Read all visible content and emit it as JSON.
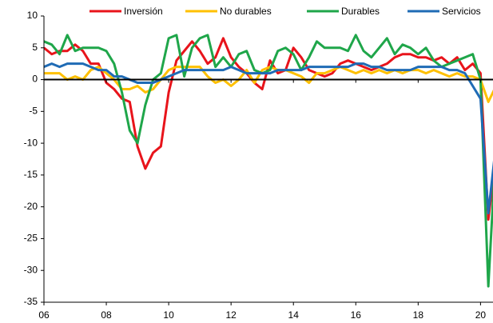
{
  "chart_data": {
    "type": "line",
    "x": [
      2006,
      2006.25,
      2006.5,
      2006.75,
      2007,
      2007.25,
      2007.5,
      2007.75,
      2008,
      2008.25,
      2008.5,
      2008.75,
      2009,
      2009.25,
      2009.5,
      2009.75,
      2010,
      2010.25,
      2010.5,
      2010.75,
      2011,
      2011.25,
      2011.5,
      2011.75,
      2012,
      2012.25,
      2012.5,
      2012.75,
      2013,
      2013.25,
      2013.5,
      2013.75,
      2014,
      2014.25,
      2014.5,
      2014.75,
      2015,
      2015.25,
      2015.5,
      2015.75,
      2016,
      2016.25,
      2016.5,
      2016.75,
      2017,
      2017.25,
      2017.5,
      2017.75,
      2018,
      2018.25,
      2018.5,
      2018.75,
      2019,
      2019.25,
      2019.5,
      2019.75,
      2020,
      2020.25,
      2020.5
    ],
    "series": [
      {
        "name": "Inversión",
        "color": "#e8141b",
        "values": [
          5,
          4,
          4.5,
          4.5,
          5.5,
          4.5,
          2.5,
          2.5,
          -0.5,
          -1.5,
          -3,
          -3.5,
          -10.5,
          -14,
          -11.5,
          -10.5,
          -2,
          3,
          4.5,
          6,
          4.5,
          2.5,
          3.5,
          6.5,
          3.5,
          2,
          1,
          -0.5,
          -1.5,
          3,
          1,
          1.5,
          5,
          3.5,
          1.5,
          1,
          0.5,
          1,
          2.5,
          3,
          2.5,
          2,
          1.5,
          2,
          2.5,
          3.5,
          4,
          4,
          3.5,
          3.5,
          3,
          3.5,
          2.5,
          3.5,
          1.5,
          2.5,
          1,
          -22,
          -12
        ]
      },
      {
        "name": "No durables",
        "color": "#ffc000",
        "values": [
          1,
          1,
          1,
          0,
          0.5,
          0,
          1.5,
          2,
          1,
          0,
          -1.5,
          -1.5,
          -1,
          -2,
          -1.5,
          0,
          1.5,
          2,
          2,
          2,
          2,
          0.5,
          -0.5,
          0,
          -1,
          0,
          1.5,
          -0.5,
          1.5,
          2,
          1.5,
          1.5,
          1,
          0.5,
          -0.5,
          1,
          1,
          1.5,
          2,
          1.5,
          1,
          1.5,
          1,
          1.5,
          1,
          1.5,
          1,
          1.5,
          1.5,
          1,
          1.5,
          1,
          0.5,
          1,
          0.5,
          0.5,
          0,
          -3.5,
          -1
        ]
      },
      {
        "name": "Durables",
        "color": "#1fa64a",
        "values": [
          6,
          5.5,
          4,
          7,
          4.5,
          5,
          5,
          5,
          4.5,
          2.5,
          -2,
          -8,
          -10,
          -4,
          0,
          1,
          6.5,
          7,
          0.5,
          5,
          6.5,
          7,
          2,
          3.5,
          2,
          4,
          4.5,
          1.5,
          1,
          1.5,
          4.5,
          5,
          4,
          1.5,
          3.5,
          6,
          5,
          5,
          5,
          4.5,
          7,
          4.5,
          3.5,
          5,
          6.5,
          4,
          5.5,
          5,
          4,
          5,
          3,
          2,
          2.5,
          3,
          3.5,
          4,
          0,
          -32.5,
          -10
        ]
      },
      {
        "name": "Servicios",
        "color": "#1f6bb5",
        "values": [
          2,
          2.5,
          2,
          2.5,
          2.5,
          2.5,
          2,
          1.5,
          1.5,
          0.5,
          0.5,
          0,
          -0.5,
          -0.5,
          -0.5,
          0,
          0.5,
          1,
          1.5,
          1.5,
          1.5,
          1.5,
          1.5,
          1.5,
          2,
          1.5,
          1,
          1,
          1,
          1,
          1.5,
          1.5,
          1.5,
          1.5,
          2,
          2,
          2,
          2,
          2,
          2,
          2.5,
          2.5,
          2,
          2,
          1.5,
          1.5,
          1.5,
          1.5,
          2,
          2,
          2,
          2,
          1.5,
          1.5,
          1,
          -1,
          -3,
          -21,
          -10
        ]
      }
    ],
    "xlim": [
      2006,
      2020.4
    ],
    "xticks": [
      {
        "value": 2006,
        "label": "06"
      },
      {
        "value": 2008,
        "label": "08"
      },
      {
        "value": 2010,
        "label": "10"
      },
      {
        "value": 2012,
        "label": "12"
      },
      {
        "value": 2014,
        "label": "14"
      },
      {
        "value": 2016,
        "label": "16"
      },
      {
        "value": 2018,
        "label": "18"
      },
      {
        "value": 2020,
        "label": "20"
      }
    ],
    "ylim": [
      -35,
      10
    ],
    "yticks": [
      -35,
      -30,
      -25,
      -20,
      -15,
      -10,
      -5,
      0,
      5,
      10
    ],
    "grid": false,
    "legend": "top"
  }
}
